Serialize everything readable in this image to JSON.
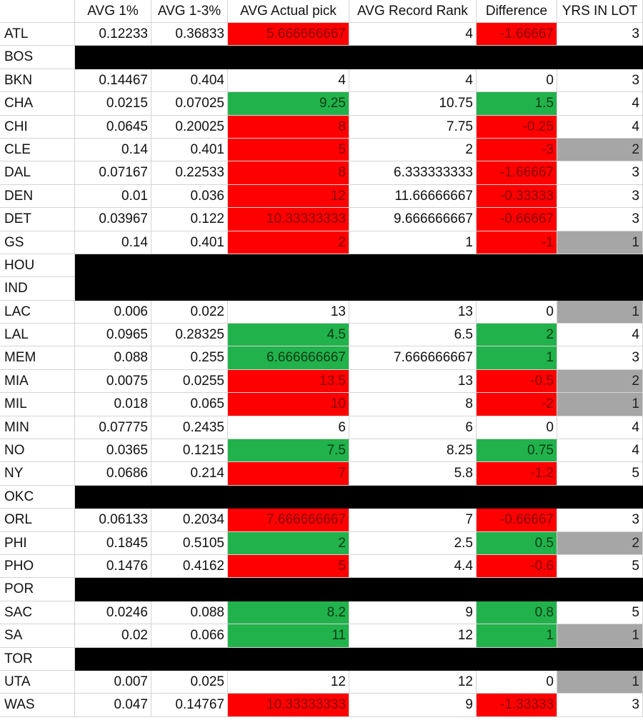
{
  "headers": [
    "",
    "AVG 1%",
    "AVG 1-3%",
    "AVG Actual pick",
    "AVG Record Rank",
    "Difference",
    "YRS IN LOT"
  ],
  "colors": {
    "red": "#ff0000",
    "green": "#22b24c",
    "gray": "#a6a6a6",
    "black": "#000000"
  },
  "rows": [
    {
      "team": "ATL",
      "cols": [
        "0.12233",
        "0.36833",
        "5.666666667",
        "4",
        "-1.66667",
        "3"
      ],
      "pick": "red",
      "diff": "red",
      "yrs": ""
    },
    {
      "team": "BOS",
      "blank": true
    },
    {
      "team": "BKN",
      "cols": [
        "0.14467",
        "0.404",
        "4",
        "4",
        "0",
        "3"
      ],
      "pick": "",
      "diff": "",
      "yrs": ""
    },
    {
      "team": "CHA",
      "cols": [
        "0.0215",
        "0.07025",
        "9.25",
        "10.75",
        "1.5",
        "4"
      ],
      "pick": "green",
      "diff": "green",
      "yrs": ""
    },
    {
      "team": "CHI",
      "cols": [
        "0.0645",
        "0.20025",
        "8",
        "7.75",
        "-0.25",
        "4"
      ],
      "pick": "red",
      "diff": "red",
      "yrs": ""
    },
    {
      "team": "CLE",
      "cols": [
        "0.14",
        "0.401",
        "5",
        "2",
        "-3",
        "2"
      ],
      "pick": "red",
      "diff": "red",
      "yrs": "gray"
    },
    {
      "team": "DAL",
      "cols": [
        "0.07167",
        "0.22533",
        "8",
        "6.333333333",
        "-1.66667",
        "3"
      ],
      "pick": "red",
      "diff": "red",
      "yrs": ""
    },
    {
      "team": "DEN",
      "cols": [
        "0.01",
        "0.036",
        "12",
        "11.66666667",
        "-0.33333",
        "3"
      ],
      "pick": "red",
      "diff": "red",
      "yrs": ""
    },
    {
      "team": "DET",
      "cols": [
        "0.03967",
        "0.122",
        "10.33333333",
        "9.666666667",
        "-0.66667",
        "3"
      ],
      "pick": "red",
      "diff": "red",
      "yrs": ""
    },
    {
      "team": "GS",
      "cols": [
        "0.14",
        "0.401",
        "2",
        "1",
        "-1",
        "1"
      ],
      "pick": "red",
      "diff": "red",
      "yrs": "gray"
    },
    {
      "team": "HOU",
      "blank": true
    },
    {
      "team": "IND",
      "blank": true
    },
    {
      "team": "LAC",
      "cols": [
        "0.006",
        "0.022",
        "13",
        "13",
        "0",
        "1"
      ],
      "pick": "",
      "diff": "",
      "yrs": "gray"
    },
    {
      "team": "LAL",
      "cols": [
        "0.0965",
        "0.28325",
        "4.5",
        "6.5",
        "2",
        "4"
      ],
      "pick": "green",
      "diff": "green",
      "yrs": ""
    },
    {
      "team": "MEM",
      "cols": [
        "0.088",
        "0.255",
        "6.666666667",
        "7.666666667",
        "1",
        "3"
      ],
      "pick": "green",
      "diff": "green",
      "yrs": ""
    },
    {
      "team": "MIA",
      "cols": [
        "0.0075",
        "0.0255",
        "13.5",
        "13",
        "-0.5",
        "2"
      ],
      "pick": "red",
      "diff": "red",
      "yrs": "gray"
    },
    {
      "team": "MIL",
      "cols": [
        "0.018",
        "0.065",
        "10",
        "8",
        "-2",
        "1"
      ],
      "pick": "red",
      "diff": "red",
      "yrs": "gray"
    },
    {
      "team": "MIN",
      "cols": [
        "0.07775",
        "0.2435",
        "6",
        "6",
        "0",
        "4"
      ],
      "pick": "",
      "diff": "",
      "yrs": ""
    },
    {
      "team": "NO",
      "cols": [
        "0.0365",
        "0.1215",
        "7.5",
        "8.25",
        "0.75",
        "4"
      ],
      "pick": "green",
      "diff": "green",
      "yrs": ""
    },
    {
      "team": "NY",
      "cols": [
        "0.0686",
        "0.214",
        "7",
        "5.8",
        "-1.2",
        "5"
      ],
      "pick": "red",
      "diff": "red",
      "yrs": ""
    },
    {
      "team": "OKC",
      "blank": true
    },
    {
      "team": "ORL",
      "cols": [
        "0.06133",
        "0.2034",
        "7.666666667",
        "7",
        "-0.66667",
        "3"
      ],
      "pick": "red",
      "diff": "red",
      "yrs": ""
    },
    {
      "team": "PHI",
      "cols": [
        "0.1845",
        "0.5105",
        "2",
        "2.5",
        "0.5",
        "2"
      ],
      "pick": "green",
      "diff": "green",
      "yrs": "gray"
    },
    {
      "team": "PHO",
      "cols": [
        "0.1476",
        "0.4162",
        "5",
        "4.4",
        "-0.6",
        "5"
      ],
      "pick": "red",
      "diff": "red",
      "yrs": ""
    },
    {
      "team": "POR",
      "blank": true
    },
    {
      "team": "SAC",
      "cols": [
        "0.0246",
        "0.088",
        "8.2",
        "9",
        "0.8",
        "5"
      ],
      "pick": "green",
      "diff": "green",
      "yrs": ""
    },
    {
      "team": "SA",
      "cols": [
        "0.02",
        "0.066",
        "11",
        "12",
        "1",
        "1"
      ],
      "pick": "green",
      "diff": "green",
      "yrs": "gray"
    },
    {
      "team": "TOR",
      "blank": true
    },
    {
      "team": "UTA",
      "cols": [
        "0.007",
        "0.025",
        "12",
        "12",
        "0",
        "1"
      ],
      "pick": "",
      "diff": "",
      "yrs": "gray"
    },
    {
      "team": "WAS",
      "cols": [
        "0.047",
        "0.14767",
        "10.33333333",
        "9",
        "-1.33333",
        "3"
      ],
      "pick": "red",
      "diff": "red",
      "yrs": ""
    }
  ]
}
